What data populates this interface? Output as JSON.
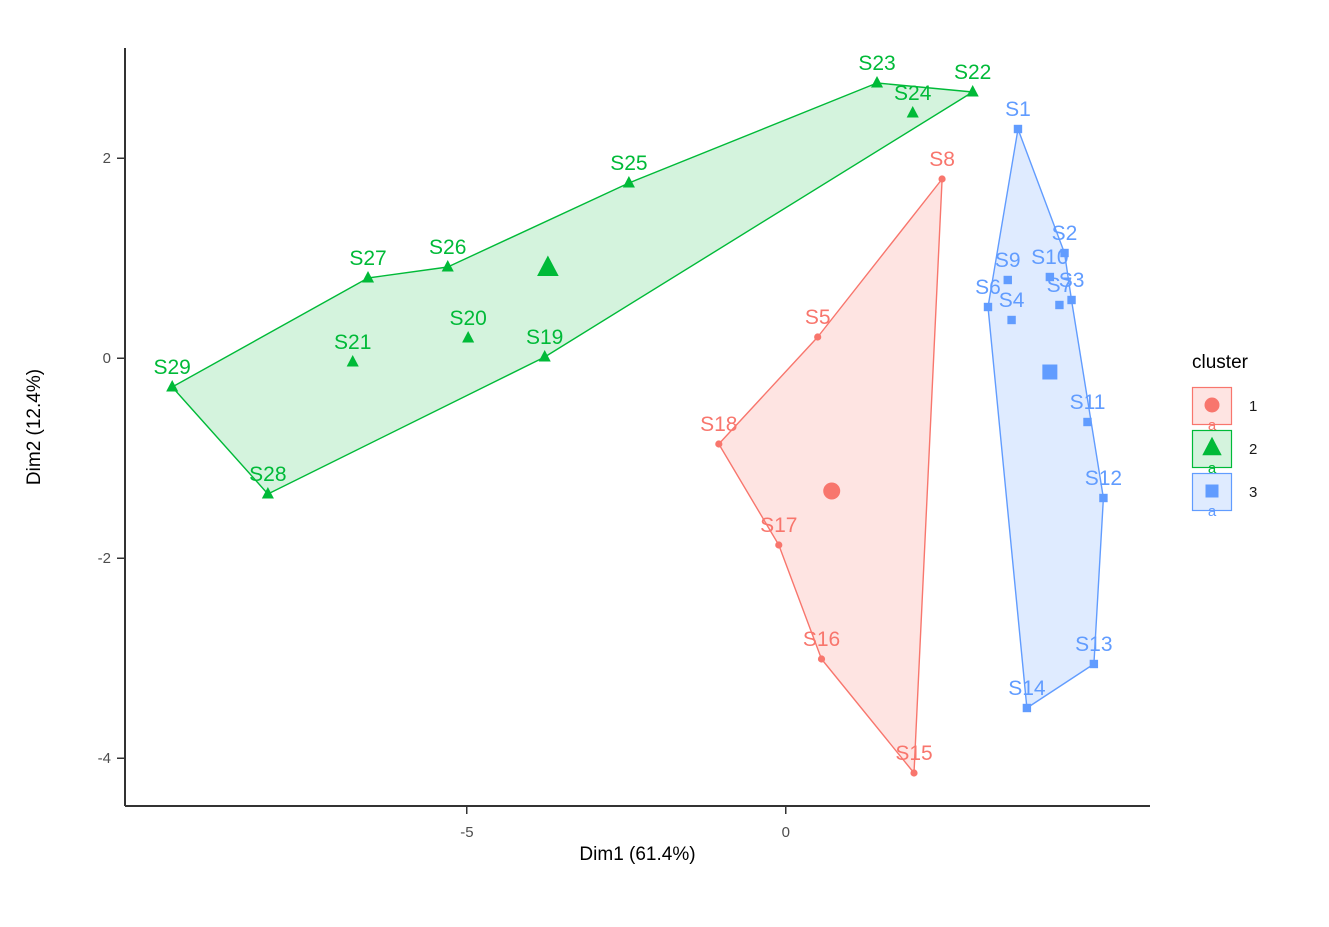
{
  "chart_data": {
    "type": "scatter",
    "title": "",
    "xlabel": "Dim1 (61.4%)",
    "ylabel": "Dim2 (12.4%)",
    "x_ticks": [
      -5,
      0
    ],
    "y_ticks": [
      2,
      0,
      -2,
      -4
    ],
    "x_range": [
      -10.36,
      5.71
    ],
    "y_range": [
      -4.48,
      3.1
    ],
    "grid": false,
    "axis_color": "#333333",
    "tick_label_color": "#4d4d4d",
    "legend": {
      "title": "cluster",
      "position": "right",
      "entries": [
        {
          "label": "1"
        },
        {
          "label": "2"
        },
        {
          "label": "3"
        }
      ]
    },
    "clusters": [
      {
        "id": "1",
        "shape": "circle",
        "color": "#F8766D",
        "fill": "rgba(248,118,109,0.2)",
        "centroid": {
          "x": 0.72,
          "y": -1.33
        },
        "hull": [
          "S8",
          "S15",
          "S16",
          "S17",
          "S18",
          "S5"
        ],
        "points": [
          {
            "label": "S5",
            "x": 0.5,
            "y": 0.21
          },
          {
            "label": "S8",
            "x": 2.45,
            "y": 1.79
          },
          {
            "label": "S15",
            "x": 2.01,
            "y": -4.15
          },
          {
            "label": "S16",
            "x": 0.56,
            "y": -3.01
          },
          {
            "label": "S17",
            "x": -0.11,
            "y": -1.87
          },
          {
            "label": "S18",
            "x": -1.05,
            "y": -0.86
          }
        ]
      },
      {
        "id": "2",
        "shape": "triangle",
        "color": "#00BA38",
        "fill": "rgba(0,186,56,0.17)",
        "centroid": {
          "x": -3.73,
          "y": 0.9
        },
        "hull": [
          "S29",
          "S27",
          "S26",
          "S25",
          "S23",
          "S22",
          "S19",
          "S28"
        ],
        "points": [
          {
            "label": "S19",
            "x": -3.78,
            "y": 0.01
          },
          {
            "label": "S20",
            "x": -4.98,
            "y": 0.2
          },
          {
            "label": "S21",
            "x": -6.79,
            "y": -0.04
          },
          {
            "label": "S22",
            "x": 2.93,
            "y": 2.66
          },
          {
            "label": "S23",
            "x": 1.43,
            "y": 2.75
          },
          {
            "label": "S24",
            "x": 1.99,
            "y": 2.45
          },
          {
            "label": "S25",
            "x": -2.46,
            "y": 1.75
          },
          {
            "label": "S26",
            "x": -5.3,
            "y": 0.91
          },
          {
            "label": "S27",
            "x": -6.55,
            "y": 0.8
          },
          {
            "label": "S28",
            "x": -8.12,
            "y": -1.36
          },
          {
            "label": "S29",
            "x": -9.62,
            "y": -0.29
          }
        ]
      },
      {
        "id": "3",
        "shape": "square",
        "color": "#619CFF",
        "fill": "rgba(97,156,255,0.2)",
        "centroid": {
          "x": 4.14,
          "y": -0.14
        },
        "hull": [
          "S1",
          "S2",
          "S3",
          "S12",
          "S13",
          "S14",
          "S6"
        ],
        "points": [
          {
            "label": "S1",
            "x": 3.64,
            "y": 2.29
          },
          {
            "label": "S2",
            "x": 4.37,
            "y": 1.05
          },
          {
            "label": "S3",
            "x": 4.48,
            "y": 0.58
          },
          {
            "label": "S4",
            "x": 3.54,
            "y": 0.38
          },
          {
            "label": "S6",
            "x": 3.17,
            "y": 0.51
          },
          {
            "label": "S7",
            "x": 4.29,
            "y": 0.53
          },
          {
            "label": "S9",
            "x": 3.48,
            "y": 0.78
          },
          {
            "label": "S10",
            "x": 4.14,
            "y": 0.81
          },
          {
            "label": "S11",
            "x": 4.73,
            "y": -0.64
          },
          {
            "label": "S12",
            "x": 4.98,
            "y": -1.4
          },
          {
            "label": "S13",
            "x": 4.83,
            "y": -3.06
          },
          {
            "label": "S14",
            "x": 3.78,
            "y": -3.5
          }
        ]
      }
    ]
  }
}
